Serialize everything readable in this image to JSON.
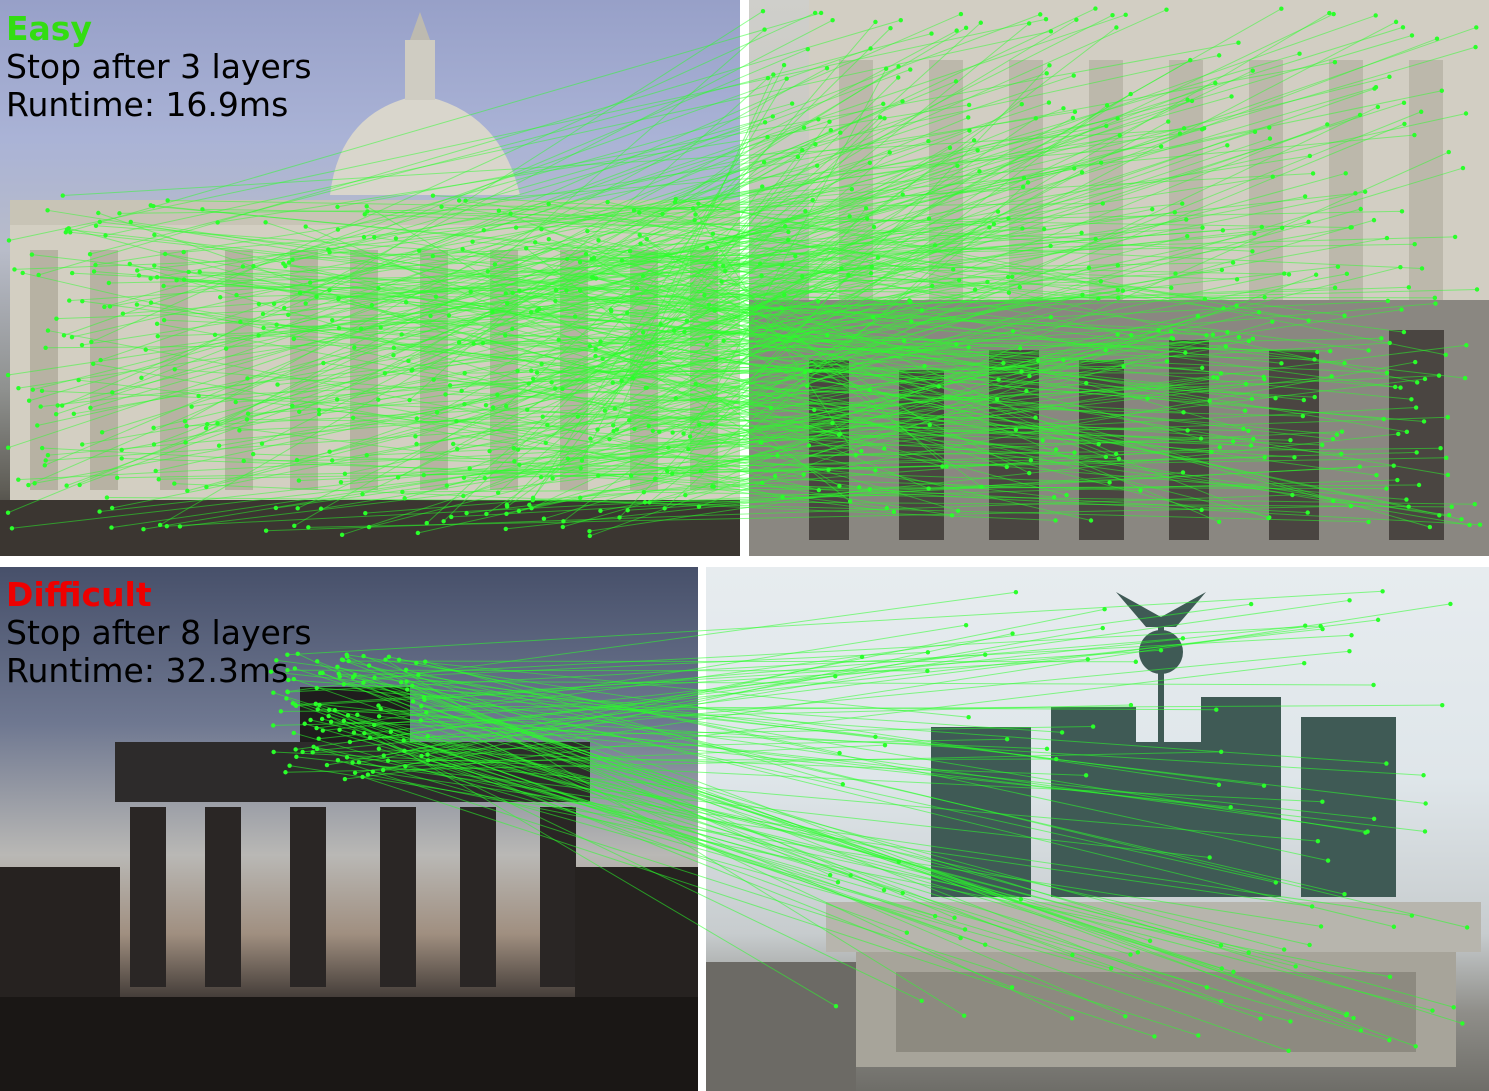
{
  "easy": {
    "label": "Easy",
    "stop": "Stop after 3 layers",
    "runtime": "Runtime: 16.9ms",
    "label_color": "#33dd11"
  },
  "difficult": {
    "label": "Difficult",
    "stop": "Stop after 8 layers",
    "runtime": "Runtime: 32.3ms",
    "label_color": "#ee0000"
  },
  "match_color": "#2aff2a"
}
